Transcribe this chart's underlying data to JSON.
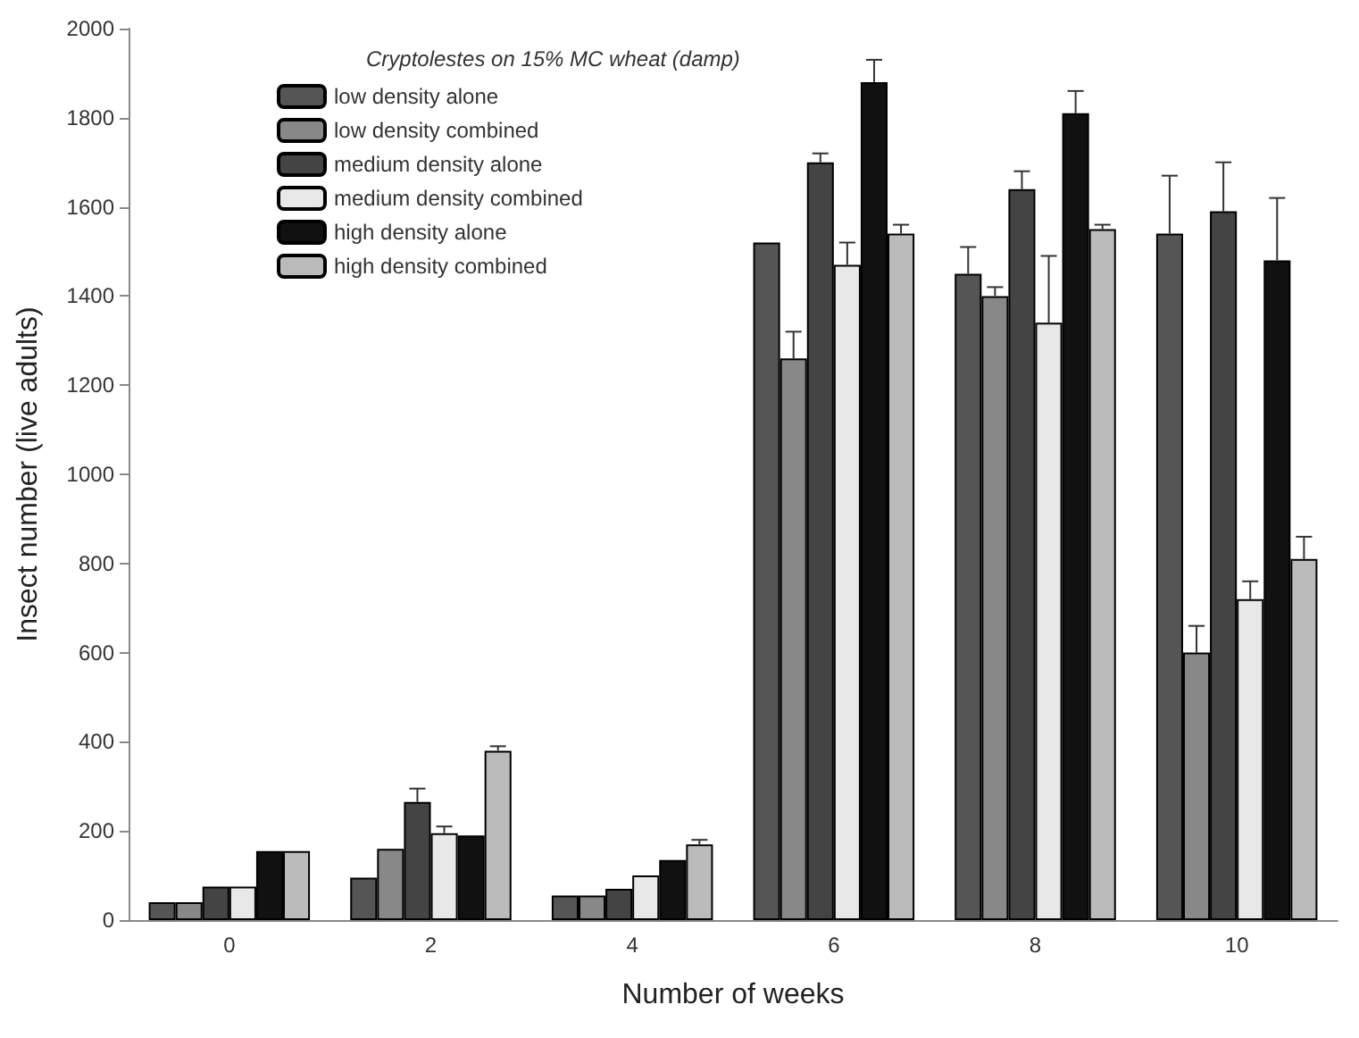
{
  "chart_data": {
    "type": "bar",
    "title": "Cryptolestes on 15% MC wheat (damp)",
    "xlabel": "Number of weeks",
    "ylabel": "Insect number (live adults)",
    "categories": [
      "0",
      "2",
      "4",
      "6",
      "8",
      "10"
    ],
    "series": [
      {
        "name": "low density alone",
        "color": "#555555",
        "values": [
          40,
          95,
          55,
          1520,
          1450,
          1540
        ],
        "errors": [
          null,
          null,
          null,
          null,
          [
            1450,
            1510
          ],
          [
            1540,
            1670
          ]
        ]
      },
      {
        "name": "low density combined",
        "color": "#888888",
        "values": [
          40,
          160,
          55,
          1260,
          1400,
          600
        ],
        "errors": [
          null,
          null,
          null,
          [
            1260,
            1320
          ],
          [
            1400,
            1420
          ],
          [
            600,
            660
          ]
        ]
      },
      {
        "name": "medium density alone",
        "color": "#444444",
        "values": [
          75,
          265,
          70,
          1700,
          1640,
          1590
        ],
        "errors": [
          null,
          [
            265,
            295
          ],
          null,
          [
            1700,
            1720
          ],
          [
            1640,
            1680
          ],
          [
            1590,
            1700
          ]
        ]
      },
      {
        "name": "medium density combined",
        "color": "#e8e8e8",
        "values": [
          75,
          195,
          100,
          1470,
          1340,
          720
        ],
        "errors": [
          null,
          [
            195,
            210
          ],
          null,
          [
            1470,
            1520
          ],
          [
            1340,
            1490
          ],
          [
            720,
            760
          ]
        ]
      },
      {
        "name": "high density alone",
        "color": "#111111",
        "values": [
          155,
          190,
          135,
          1880,
          1810,
          1480
        ],
        "errors": [
          null,
          null,
          null,
          [
            1880,
            1930
          ],
          [
            1810,
            1860
          ],
          [
            1480,
            1620
          ]
        ]
      },
      {
        "name": "high density combined",
        "color": "#bbbbbb",
        "values": [
          155,
          380,
          170,
          1540,
          1550,
          810
        ],
        "errors": [
          null,
          [
            380,
            390
          ],
          [
            170,
            180
          ],
          [
            1540,
            1560
          ],
          [
            1550,
            1560
          ],
          [
            810,
            860
          ]
        ]
      }
    ],
    "ylim": [
      0,
      2000
    ],
    "yticks": [
      0,
      200,
      400,
      600,
      800,
      1000,
      1200,
      1400,
      1600,
      1800,
      2000
    ],
    "grid": false,
    "legend": "top left"
  }
}
